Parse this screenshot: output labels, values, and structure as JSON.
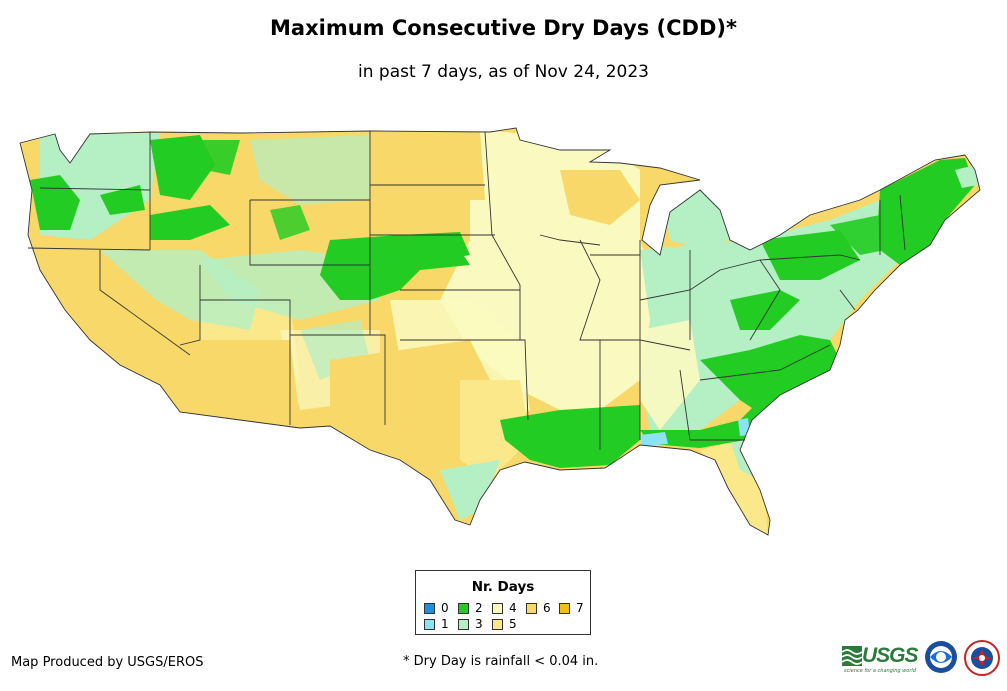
{
  "title": "Maximum Consecutive Dry Days (CDD)*",
  "subtitle": "in past 7 days, as of Nov 24, 2023",
  "legend": {
    "title": "Nr. Days",
    "items": [
      {
        "label": "0",
        "color": "#1e90dc"
      },
      {
        "label": "1",
        "color": "#8ee2f8"
      },
      {
        "label": "2",
        "color": "#22cc22"
      },
      {
        "label": "3",
        "color": "#b4f0c4"
      },
      {
        "label": "4",
        "color": "#fafac0"
      },
      {
        "label": "5",
        "color": "#fae88a"
      },
      {
        "label": "6",
        "color": "#f8d868"
      },
      {
        "label": "7",
        "color": "#f0c020"
      }
    ]
  },
  "credit": "Map Produced by USGS/EROS",
  "footnote": "* Dry Day is rainfall < 0.04 in.",
  "logos": {
    "usgs": "USGS",
    "usgs_tagline": "science for a changing world",
    "noaa": "noaa",
    "nws": "NATIONAL WEATHER SERVICE"
  }
}
